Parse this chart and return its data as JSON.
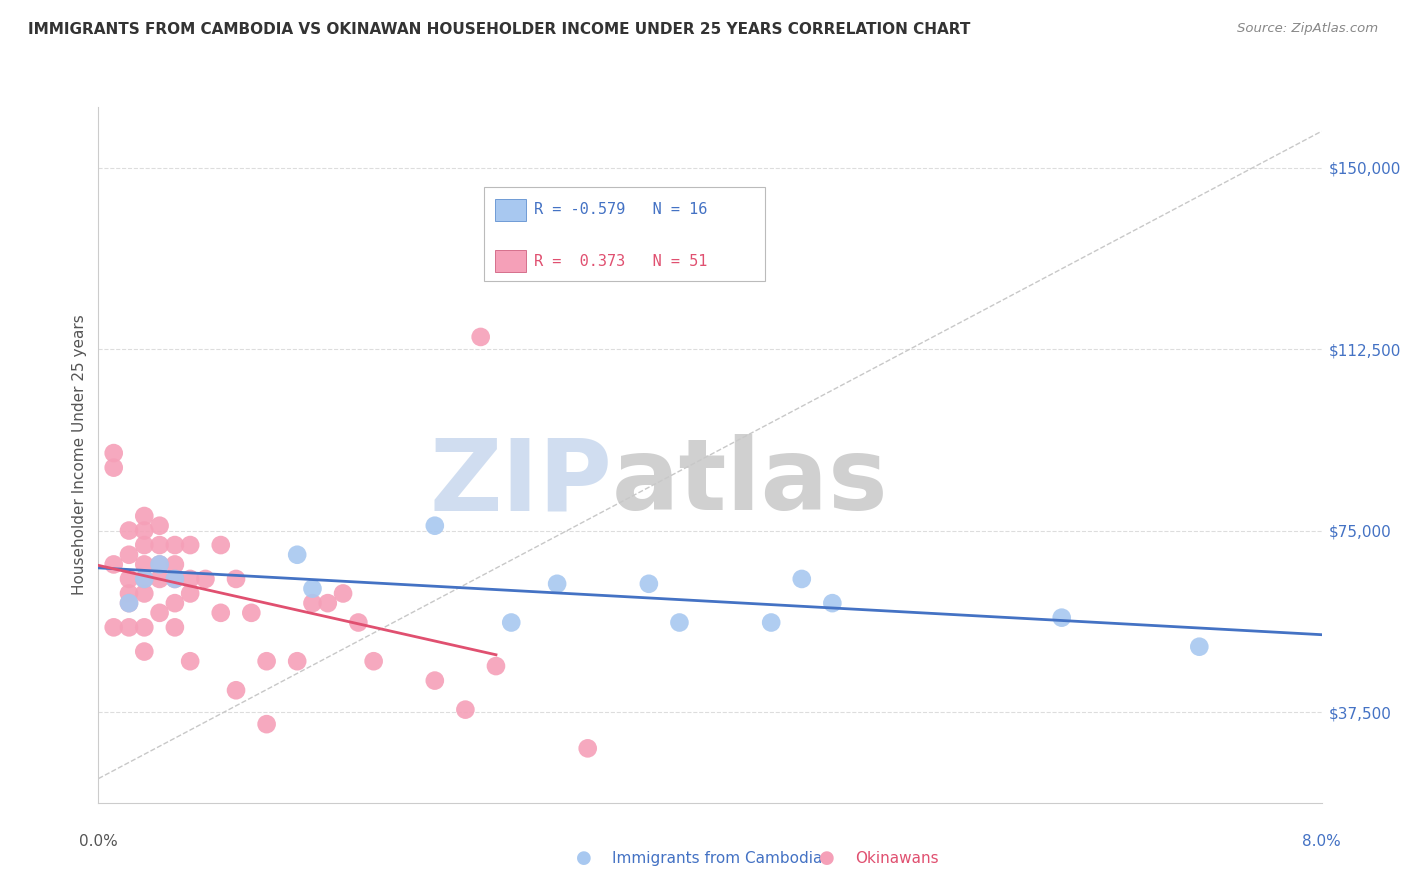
{
  "title": "IMMIGRANTS FROM CAMBODIA VS OKINAWAN HOUSEHOLDER INCOME UNDER 25 YEARS CORRELATION CHART",
  "source": "Source: ZipAtlas.com",
  "ylabel": "Householder Income Under 25 years",
  "ytick_labels": [
    "$37,500",
    "$75,000",
    "$112,500",
    "$150,000"
  ],
  "ytick_values": [
    37500,
    75000,
    112500,
    150000
  ],
  "legend_blue_r": "-0.579",
  "legend_blue_n": "16",
  "legend_pink_r": "0.373",
  "legend_pink_n": "51",
  "legend_blue_label": "Immigrants from Cambodia",
  "legend_pink_label": "Okinawans",
  "blue_color": "#A8C8F0",
  "pink_color": "#F5A0B8",
  "blue_line_color": "#4472C4",
  "pink_line_color": "#E05070",
  "xmin": 0.0,
  "xmax": 0.08,
  "ymin": 18750,
  "ymax": 162500,
  "blue_points_x": [
    0.002,
    0.003,
    0.004,
    0.005,
    0.013,
    0.014,
    0.022,
    0.027,
    0.03,
    0.036,
    0.038,
    0.044,
    0.046,
    0.048,
    0.063,
    0.072
  ],
  "blue_points_y": [
    60000,
    65000,
    68000,
    65000,
    70000,
    63000,
    76000,
    56000,
    64000,
    64000,
    56000,
    56000,
    65000,
    60000,
    57000,
    51000
  ],
  "pink_points_x": [
    0.001,
    0.001,
    0.001,
    0.001,
    0.002,
    0.002,
    0.002,
    0.002,
    0.002,
    0.002,
    0.003,
    0.003,
    0.003,
    0.003,
    0.003,
    0.003,
    0.003,
    0.003,
    0.004,
    0.004,
    0.004,
    0.004,
    0.004,
    0.005,
    0.005,
    0.005,
    0.005,
    0.005,
    0.006,
    0.006,
    0.006,
    0.006,
    0.007,
    0.008,
    0.008,
    0.009,
    0.009,
    0.01,
    0.011,
    0.011,
    0.013,
    0.014,
    0.015,
    0.016,
    0.017,
    0.018,
    0.022,
    0.024,
    0.025,
    0.026,
    0.032
  ],
  "pink_points_y": [
    91000,
    88000,
    68000,
    55000,
    75000,
    70000,
    65000,
    62000,
    60000,
    55000,
    78000,
    75000,
    72000,
    68000,
    65000,
    62000,
    55000,
    50000,
    76000,
    72000,
    68000,
    65000,
    58000,
    72000,
    68000,
    65000,
    60000,
    55000,
    72000,
    65000,
    62000,
    48000,
    65000,
    72000,
    58000,
    65000,
    42000,
    58000,
    48000,
    35000,
    48000,
    60000,
    60000,
    62000,
    56000,
    48000,
    44000,
    38000,
    115000,
    47000,
    30000
  ]
}
